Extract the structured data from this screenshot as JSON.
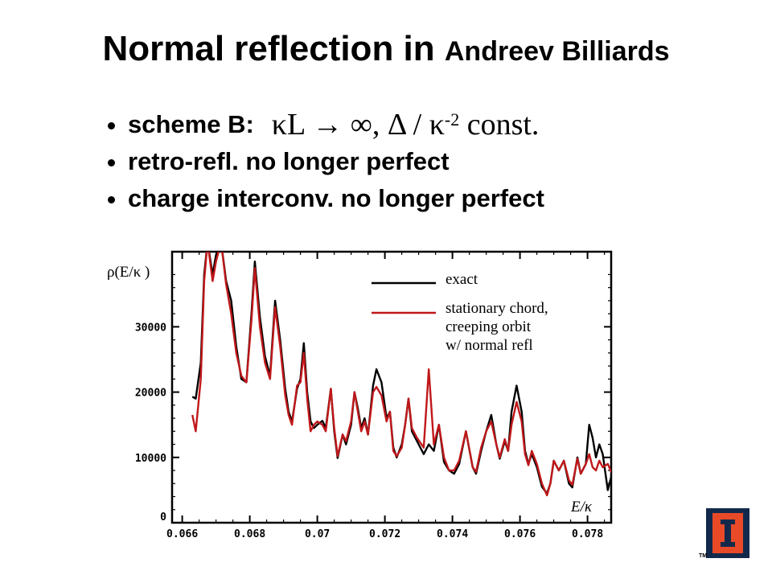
{
  "slide": {
    "title_main": "Normal reflection in ",
    "title_sub": "Andreev Billiards",
    "bullets": [
      {
        "text": "scheme B:",
        "math": "κL → ∞,  Δ / κ",
        "math_sup": "-2",
        "math_tail": " const."
      },
      {
        "text": "retro-refl. no longer perfect"
      },
      {
        "text": "charge interconv. no longer perfect"
      }
    ],
    "logo_tm": "TM"
  },
  "chart_data": {
    "type": "line",
    "ylabel": "ρ(E/κ )",
    "xlabel": "E/κ",
    "xlim": [
      0.0657,
      0.0787
    ],
    "ylim": [
      0,
      41500
    ],
    "xticks": [
      "0.066",
      "0.068",
      "0.07",
      "0.072",
      "0.074",
      "0.076",
      "0.078"
    ],
    "xtick_values": [
      0.066,
      0.068,
      0.07,
      0.072,
      0.074,
      0.076,
      0.078
    ],
    "yticks": [
      "0",
      "10000",
      "20000",
      "30000"
    ],
    "ytick_values": [
      0,
      10000,
      20000,
      30000
    ],
    "legend_position": "top-right",
    "series": [
      {
        "name": "exact",
        "color": "#000000",
        "points": [
          [
            0.0663,
            19300
          ],
          [
            0.0664,
            19000
          ],
          [
            0.06655,
            24500
          ],
          [
            0.06665,
            38000
          ],
          [
            0.06675,
            43000
          ],
          [
            0.0669,
            38000
          ],
          [
            0.067,
            41000
          ],
          [
            0.06715,
            43000
          ],
          [
            0.0673,
            37000
          ],
          [
            0.06745,
            34000
          ],
          [
            0.0676,
            27000
          ],
          [
            0.06775,
            22000
          ],
          [
            0.0679,
            21500
          ],
          [
            0.06805,
            32000
          ],
          [
            0.06815,
            40000
          ],
          [
            0.0683,
            31500
          ],
          [
            0.06845,
            25500
          ],
          [
            0.0686,
            22500
          ],
          [
            0.06875,
            34000
          ],
          [
            0.0689,
            28000
          ],
          [
            0.06905,
            20500
          ],
          [
            0.06915,
            17000
          ],
          [
            0.06925,
            15500
          ],
          [
            0.0694,
            20500
          ],
          [
            0.0695,
            22000
          ],
          [
            0.0696,
            27500
          ],
          [
            0.0697,
            20000
          ],
          [
            0.0698,
            15500
          ],
          [
            0.0699,
            14500
          ],
          [
            0.07,
            15000
          ],
          [
            0.07015,
            15600
          ],
          [
            0.07025,
            14500
          ],
          [
            0.0704,
            20500
          ],
          [
            0.0705,
            14000
          ],
          [
            0.0706,
            9900
          ],
          [
            0.07075,
            13500
          ],
          [
            0.07085,
            12000
          ],
          [
            0.071,
            15000
          ],
          [
            0.0711,
            20000
          ],
          [
            0.0712,
            17500
          ],
          [
            0.0713,
            14500
          ],
          [
            0.0714,
            16000
          ],
          [
            0.0715,
            13500
          ],
          [
            0.07165,
            21000
          ],
          [
            0.07175,
            23500
          ],
          [
            0.0719,
            21500
          ],
          [
            0.07205,
            16000
          ],
          [
            0.07215,
            17000
          ],
          [
            0.07225,
            11500
          ],
          [
            0.07235,
            10000
          ],
          [
            0.0725,
            12000
          ],
          [
            0.0726,
            15000
          ],
          [
            0.0727,
            19000
          ],
          [
            0.0728,
            14000
          ],
          [
            0.07295,
            12500
          ],
          [
            0.07315,
            10500
          ],
          [
            0.0733,
            12000
          ],
          [
            0.07345,
            11000
          ],
          [
            0.0736,
            15000
          ],
          [
            0.07375,
            9300
          ],
          [
            0.0739,
            8000
          ],
          [
            0.07405,
            7500
          ],
          [
            0.0742,
            9000
          ],
          [
            0.0744,
            14000
          ],
          [
            0.0746,
            8500
          ],
          [
            0.0747,
            7500
          ],
          [
            0.07485,
            11000
          ],
          [
            0.075,
            14000
          ],
          [
            0.07515,
            16500
          ],
          [
            0.0753,
            12000
          ],
          [
            0.0754,
            9800
          ],
          [
            0.07555,
            12500
          ],
          [
            0.07565,
            11000
          ],
          [
            0.07575,
            17000
          ],
          [
            0.0759,
            21000
          ],
          [
            0.07605,
            17000
          ],
          [
            0.07615,
            11000
          ],
          [
            0.07625,
            9000
          ],
          [
            0.07635,
            10500
          ],
          [
            0.0765,
            8500
          ],
          [
            0.07665,
            5500
          ],
          [
            0.0768,
            4500
          ],
          [
            0.0769,
            6000
          ],
          [
            0.077,
            9500
          ],
          [
            0.07715,
            8000
          ],
          [
            0.0773,
            9500
          ],
          [
            0.07745,
            6000
          ],
          [
            0.07755,
            5400
          ],
          [
            0.0777,
            10000
          ],
          [
            0.0778,
            7500
          ],
          [
            0.07795,
            9000
          ],
          [
            0.07805,
            15000
          ],
          [
            0.07815,
            13000
          ],
          [
            0.07825,
            10000
          ],
          [
            0.07835,
            12000
          ],
          [
            0.07845,
            10500
          ],
          [
            0.0786,
            5000
          ],
          [
            0.07875,
            8000
          ]
        ]
      },
      {
        "name": "stationary chord,\ncreeping orbit\nw/ normal refl",
        "color": "#c0181a",
        "points": [
          [
            0.0663,
            16500
          ],
          [
            0.0664,
            14000
          ],
          [
            0.06655,
            22000
          ],
          [
            0.06665,
            37000
          ],
          [
            0.06675,
            43000
          ],
          [
            0.0669,
            37000
          ],
          [
            0.067,
            40000
          ],
          [
            0.06715,
            43000
          ],
          [
            0.0673,
            36500
          ],
          [
            0.06745,
            32000
          ],
          [
            0.0676,
            26000
          ],
          [
            0.06775,
            22500
          ],
          [
            0.0679,
            21500
          ],
          [
            0.06805,
            31000
          ],
          [
            0.06815,
            39000
          ],
          [
            0.0683,
            30000
          ],
          [
            0.06845,
            24500
          ],
          [
            0.0686,
            22000
          ],
          [
            0.06875,
            33000
          ],
          [
            0.0689,
            27000
          ],
          [
            0.06905,
            19500
          ],
          [
            0.06915,
            16500
          ],
          [
            0.06925,
            15000
          ],
          [
            0.0694,
            21000
          ],
          [
            0.0695,
            21500
          ],
          [
            0.0696,
            26000
          ],
          [
            0.0697,
            19000
          ],
          [
            0.0698,
            14000
          ],
          [
            0.0699,
            15000
          ],
          [
            0.07,
            15500
          ],
          [
            0.07015,
            15000
          ],
          [
            0.07025,
            14000
          ],
          [
            0.0704,
            20500
          ],
          [
            0.0705,
            14500
          ],
          [
            0.0706,
            10200
          ],
          [
            0.07075,
            13500
          ],
          [
            0.07085,
            12500
          ],
          [
            0.071,
            15500
          ],
          [
            0.0711,
            20000
          ],
          [
            0.0712,
            17000
          ],
          [
            0.0713,
            14000
          ],
          [
            0.0714,
            15500
          ],
          [
            0.0715,
            13500
          ],
          [
            0.07165,
            20000
          ],
          [
            0.07175,
            20800
          ],
          [
            0.0719,
            19500
          ],
          [
            0.07205,
            15500
          ],
          [
            0.07215,
            17000
          ],
          [
            0.07225,
            11000
          ],
          [
            0.07235,
            10200
          ],
          [
            0.0725,
            11500
          ],
          [
            0.0726,
            15000
          ],
          [
            0.0727,
            19000
          ],
          [
            0.0728,
            14500
          ],
          [
            0.07295,
            13000
          ],
          [
            0.07315,
            11500
          ],
          [
            0.0733,
            23500
          ],
          [
            0.07345,
            12000
          ],
          [
            0.0736,
            15000
          ],
          [
            0.07375,
            10000
          ],
          [
            0.0739,
            8000
          ],
          [
            0.07405,
            8000
          ],
          [
            0.0742,
            9500
          ],
          [
            0.0744,
            14000
          ],
          [
            0.0746,
            8500
          ],
          [
            0.0747,
            7800
          ],
          [
            0.07485,
            11500
          ],
          [
            0.075,
            14000
          ],
          [
            0.07515,
            15500
          ],
          [
            0.0753,
            12000
          ],
          [
            0.0754,
            10000
          ],
          [
            0.07555,
            12800
          ],
          [
            0.07565,
            11000
          ],
          [
            0.07575,
            15000
          ],
          [
            0.0759,
            18500
          ],
          [
            0.07605,
            15500
          ],
          [
            0.07615,
            10500
          ],
          [
            0.07625,
            8800
          ],
          [
            0.07635,
            11000
          ],
          [
            0.0765,
            9000
          ],
          [
            0.07665,
            6000
          ],
          [
            0.0768,
            4200
          ],
          [
            0.0769,
            6000
          ],
          [
            0.077,
            9500
          ],
          [
            0.07715,
            8000
          ],
          [
            0.0773,
            9500
          ],
          [
            0.07745,
            6500
          ],
          [
            0.07755,
            5800
          ],
          [
            0.0777,
            9800
          ],
          [
            0.0778,
            7500
          ],
          [
            0.07795,
            9000
          ],
          [
            0.07805,
            10500
          ],
          [
            0.07815,
            8500
          ],
          [
            0.07825,
            8000
          ],
          [
            0.07835,
            9500
          ],
          [
            0.07845,
            8500
          ],
          [
            0.0786,
            9000
          ],
          [
            0.0787,
            7800
          ],
          [
            0.0788,
            9500
          ]
        ]
      }
    ]
  }
}
